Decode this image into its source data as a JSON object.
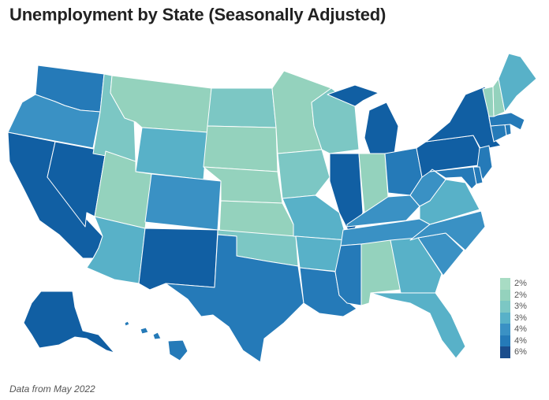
{
  "title": "Unemployment by State (Seasonally Adjusted)",
  "source": "Data from May 2022",
  "colors": {
    "b1": "#a8dcc4",
    "b2": "#94d2bd",
    "b3": "#7cc7c4",
    "b4": "#58b1c8",
    "b5": "#3a91c4",
    "b6": "#257ab8",
    "b7": "#115fa3",
    "b8": "#1b4d8c"
  },
  "legend": [
    {
      "label": "2%",
      "color": "#a8dcc4"
    },
    {
      "label": "2%",
      "color": "#94d2bd"
    },
    {
      "label": "3%",
      "color": "#7cc7c4"
    },
    {
      "label": "3%",
      "color": "#58b1c8"
    },
    {
      "label": "4%",
      "color": "#3a91c4"
    },
    {
      "label": "4%",
      "color": "#257ab8"
    },
    {
      "label": "6%",
      "color": "#1b4d8c"
    }
  ],
  "states": {
    "WA": "b6",
    "OR": "b5",
    "CA": "b7",
    "NV": "b7",
    "ID": "b3",
    "MT": "b2",
    "WY": "b4",
    "UT": "b2",
    "AZ": "b4",
    "CO": "b5",
    "NM": "b7",
    "ND": "b3",
    "SD": "b2",
    "NE": "b2",
    "KS": "b2",
    "OK": "b3",
    "TX": "b6",
    "MN": "b2",
    "IA": "b3",
    "MO": "b4",
    "AR": "b4",
    "LA": "b6",
    "WI": "b3",
    "IL": "b7",
    "MI": "b7",
    "IN": "b2",
    "OH": "b6",
    "KY": "b5",
    "TN": "b5",
    "MS": "b6",
    "AL": "b2",
    "GA": "b4",
    "FL": "b4",
    "SC": "b5",
    "NC": "b5",
    "VA": "b4",
    "WV": "b5",
    "PA": "b7",
    "NY": "b7",
    "VT": "b2",
    "NH": "b2",
    "ME": "b4",
    "MA": "b6",
    "CT": "b6",
    "RI": "b6",
    "NJ": "b6",
    "DE": "b6",
    "MD": "b6",
    "AK": "b7",
    "HI": "b6"
  }
}
